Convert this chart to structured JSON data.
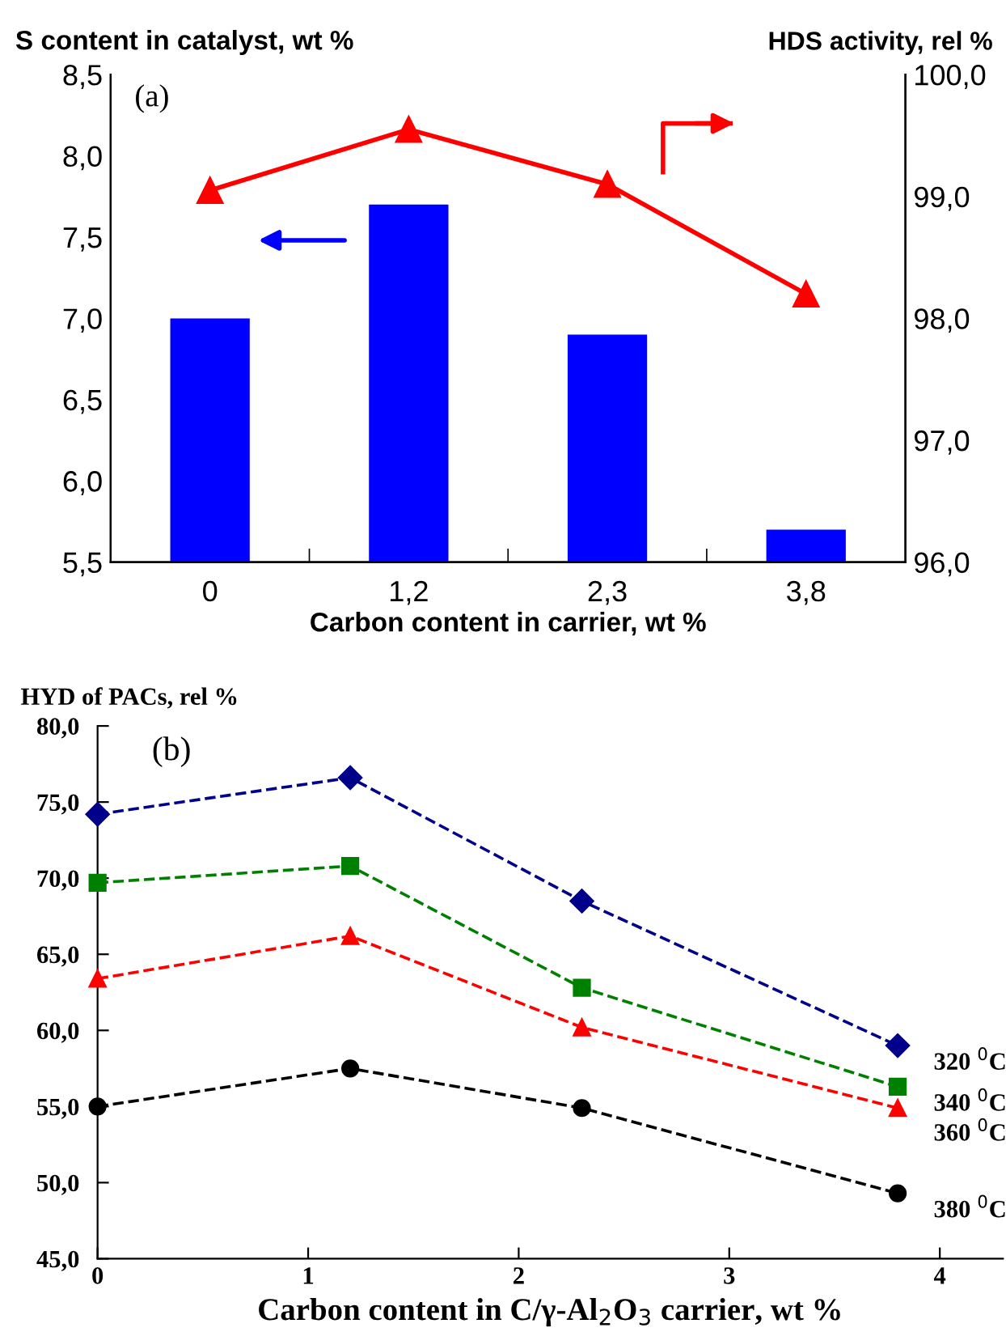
{
  "chart_data": [
    {
      "type": "bar",
      "categories": [
        "0",
        "1,2",
        "2,3",
        "3,8"
      ],
      "xlabel": "Carbon content in carrier, wt %",
      "ylabel": "S content in catalyst, wt %",
      "y2label": "HDS activity, rel %",
      "annotations": [
        "(a)"
      ],
      "ylim": [
        5.5,
        8.5
      ],
      "yticks": [
        {
          "value": 5.5,
          "label": "5,5"
        },
        {
          "value": 6.0,
          "label": "6,0"
        },
        {
          "value": 6.5,
          "label": "6,5"
        },
        {
          "value": 7.0,
          "label": "7,0"
        },
        {
          "value": 7.5,
          "label": "7,5"
        },
        {
          "value": 8.0,
          "label": "8,0"
        },
        {
          "value": 8.5,
          "label": "8,5"
        }
      ],
      "y2lim": [
        96,
        100
      ],
      "y2ticks": [
        {
          "value": 96,
          "label": "96,0"
        },
        {
          "value": 97,
          "label": "97,0"
        },
        {
          "value": 98,
          "label": "98,0"
        },
        {
          "value": 99,
          "label": "99,0"
        },
        {
          "value": 100,
          "label": "100,0"
        }
      ],
      "grid": false,
      "legend": false,
      "series": [
        {
          "type": "bar",
          "color": "#0000ff",
          "values": [
            7.0,
            7.7,
            6.9,
            5.7
          ]
        },
        {
          "type": "line",
          "axis": "y2",
          "color": "#ff0000",
          "marker": "triangle",
          "line_style": "solid",
          "values": [
            99.05,
            99.55,
            99.1,
            98.2
          ]
        }
      ]
    },
    {
      "type": "line",
      "xlabel": "Carbon content in C/γ-Al$_{2}$O$_{3}$ carrier, wt %",
      "ylabel": "HYD of PACs, rel %",
      "annotations": [
        "(b)"
      ],
      "x": [
        0,
        1.2,
        2.3,
        3.8
      ],
      "xlim": [
        0,
        4.3
      ],
      "xticks": [
        0,
        1,
        2,
        3,
        4
      ],
      "ylim": [
        45,
        80
      ],
      "yticks": [
        {
          "value": 45,
          "label": "45,0"
        },
        {
          "value": 50,
          "label": "50,0"
        },
        {
          "value": 55,
          "label": "55,0"
        },
        {
          "value": 60,
          "label": "60,0"
        },
        {
          "value": 65,
          "label": "65,0"
        },
        {
          "value": 70,
          "label": "70,0"
        },
        {
          "value": 75,
          "label": "75,0"
        },
        {
          "value": 80,
          "label": "80,0"
        }
      ],
      "grid": false,
      "legend": false,
      "line_style": "dashed",
      "series": [
        {
          "name": "320 $^{0}$C",
          "color": "#00008b",
          "marker": "diamond",
          "values": [
            74.2,
            76.6,
            68.5,
            59.0
          ]
        },
        {
          "name": "340 $^{0}$C",
          "color": "#008000",
          "marker": "square",
          "values": [
            69.7,
            70.8,
            62.8,
            56.3
          ]
        },
        {
          "name": "360 $^{0}$C",
          "color": "#ff0000",
          "marker": "triangle",
          "values": [
            63.4,
            66.2,
            60.2,
            54.9
          ]
        },
        {
          "name": "380 $^{0}$C",
          "color": "#000000",
          "marker": "circle",
          "values": [
            55.0,
            57.5,
            54.9,
            49.3
          ]
        }
      ]
    }
  ]
}
